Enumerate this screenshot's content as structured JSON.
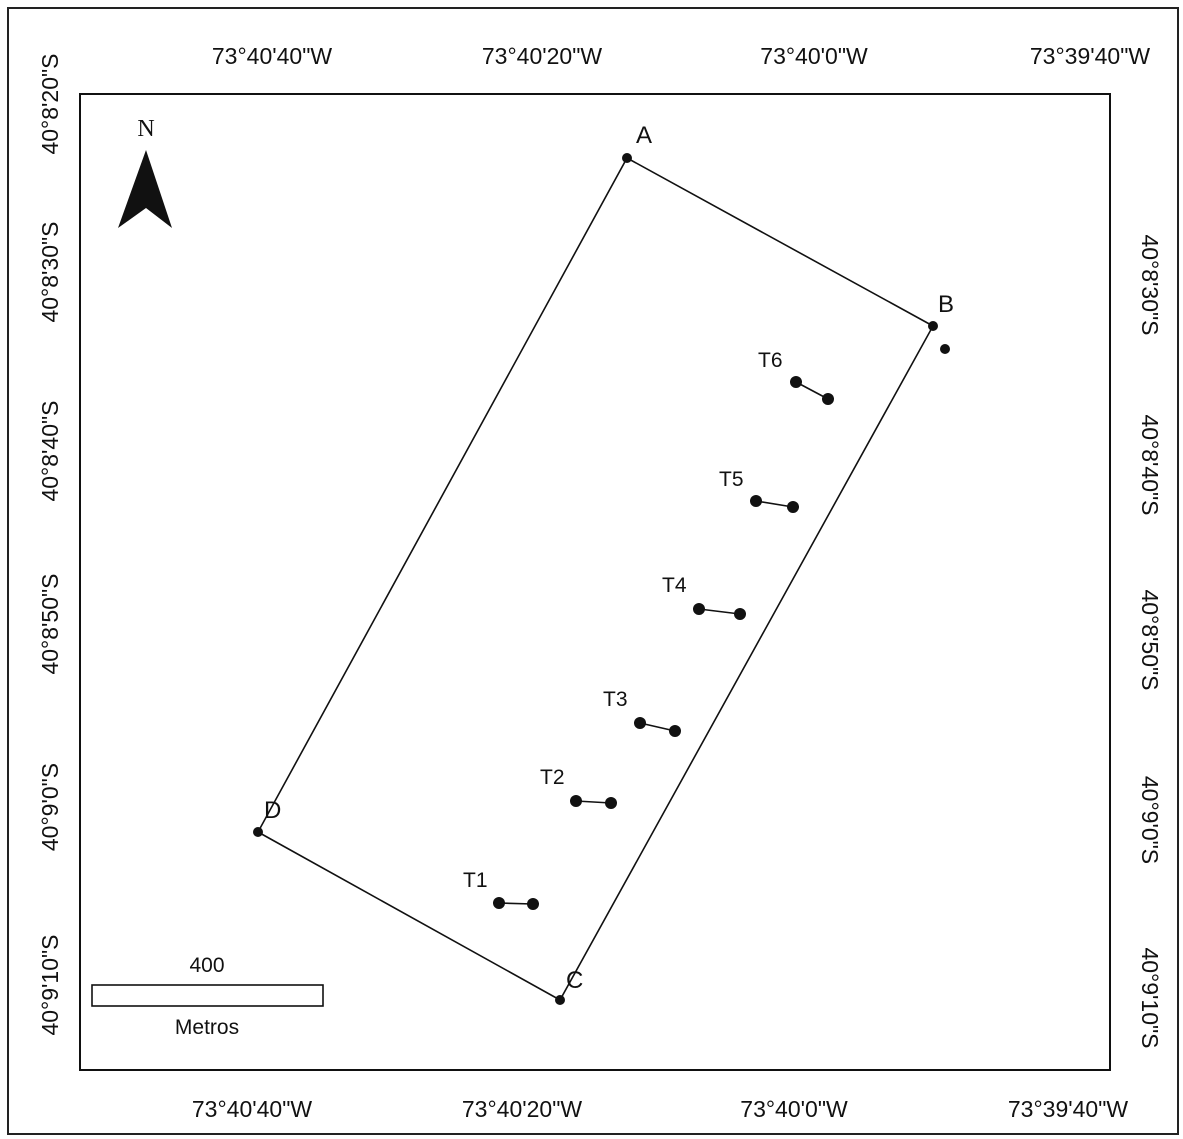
{
  "map": {
    "top_lon_labels": [
      "73°40'40\"W",
      "73°40'20\"W",
      "73°40'0\"W",
      "73°39'40\"W"
    ],
    "bottom_lon_labels": [
      "73°40'40\"W",
      "73°40'20\"W",
      "73°40'0\"W",
      "73°39'40\"W"
    ],
    "left_lat_labels": [
      "40°8'20\"S",
      "40°8'30\"S",
      "40°8'40\"S",
      "40°8'50\"S",
      "40°9'0\"S",
      "40°9'10\"S"
    ],
    "right_lat_labels": [
      "40°8'30\"S",
      "40°8'40\"S",
      "40°8'50\"S",
      "40°9'0\"S",
      "40°9'10\"S"
    ],
    "vertices": [
      "A",
      "B",
      "C",
      "D"
    ],
    "transects": [
      "T1",
      "T2",
      "T3",
      "T4",
      "T5",
      "T6"
    ],
    "north_label": "N",
    "scale": {
      "value": "400",
      "unit": "Metros"
    }
  },
  "colors": {
    "line": "#111111",
    "background": "#ffffff"
  }
}
